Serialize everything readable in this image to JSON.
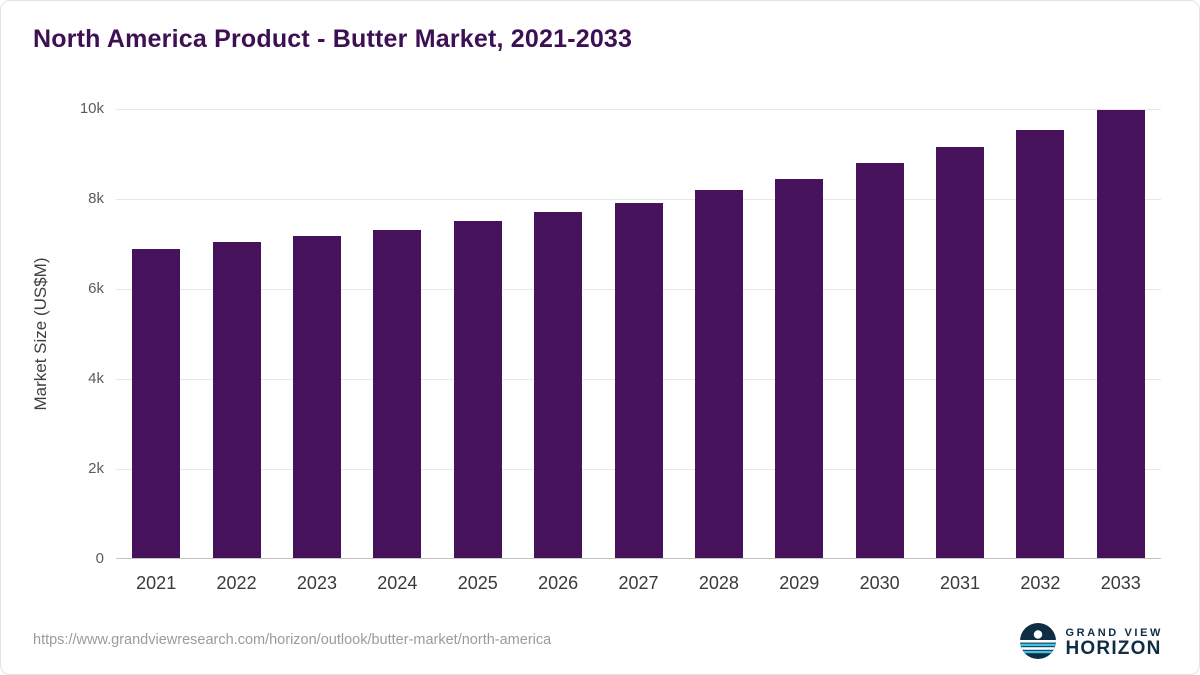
{
  "title": "North America Product - Butter Market, 2021-2033",
  "chart_data": {
    "type": "bar",
    "categories": [
      "2021",
      "2022",
      "2023",
      "2024",
      "2025",
      "2026",
      "2027",
      "2028",
      "2029",
      "2030",
      "2031",
      "2032",
      "2033"
    ],
    "values": [
      6870,
      7020,
      7150,
      7300,
      7480,
      7680,
      7900,
      8170,
      8430,
      8770,
      9130,
      9520,
      9960
    ],
    "title": "North America Product - Butter Market, 2021-2033",
    "xlabel": "",
    "ylabel": "Market Size (US$M)",
    "ylim": [
      0,
      10000
    ],
    "yticks": [
      0,
      2000,
      4000,
      6000,
      8000,
      10000
    ],
    "ytick_labels": [
      "0",
      "2k",
      "4k",
      "6k",
      "8k",
      "10k"
    ],
    "bar_color": "#46125c",
    "grid": "horizontal",
    "legend": "none"
  },
  "footer": {
    "source_url": "https://www.grandviewresearch.com/horizon/outlook/butter-market/north-america",
    "brand": {
      "line1": "GRAND VIEW",
      "line2": "HORIZON"
    }
  },
  "colors": {
    "title": "#3d1054",
    "bar": "#46125c",
    "gridline": "#e8e8e8",
    "axis_text": "#5c5c5c",
    "brand_navy": "#0f2e44",
    "brand_blue": "#3cc3ef"
  }
}
